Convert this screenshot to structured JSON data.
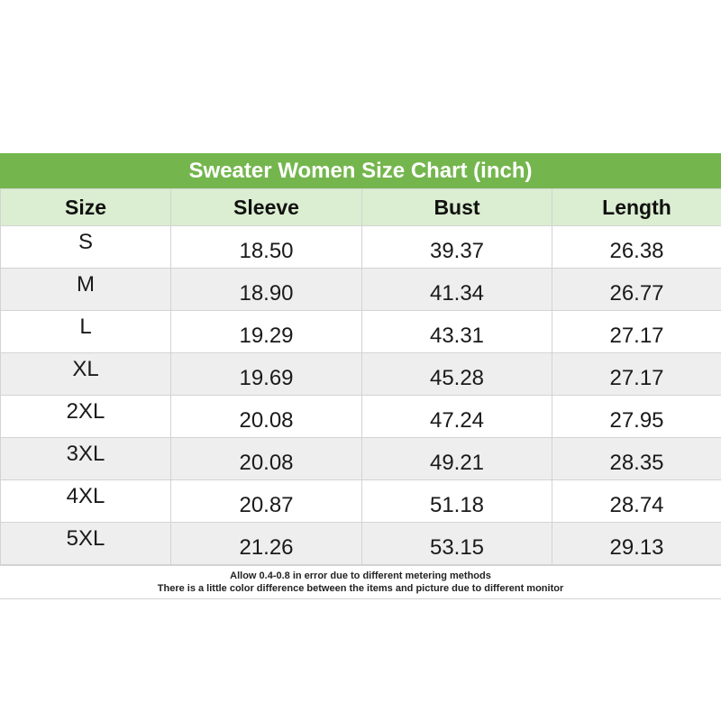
{
  "title": "Sweater Women Size Chart (inch)",
  "columns": [
    "Size",
    "Sleeve",
    "Bust",
    "Length"
  ],
  "rows": [
    {
      "size": "S",
      "sleeve": "18.50",
      "bust": "39.37",
      "length": "26.38"
    },
    {
      "size": "M",
      "sleeve": "18.90",
      "bust": "41.34",
      "length": "26.77"
    },
    {
      "size": "L",
      "sleeve": "19.29",
      "bust": "43.31",
      "length": "27.17"
    },
    {
      "size": "XL",
      "sleeve": "19.69",
      "bust": "45.28",
      "length": "27.17"
    },
    {
      "size": "2XL",
      "sleeve": "20.08",
      "bust": "47.24",
      "length": "27.95"
    },
    {
      "size": "3XL",
      "sleeve": "20.08",
      "bust": "49.21",
      "length": "28.35"
    },
    {
      "size": "4XL",
      "sleeve": "20.87",
      "bust": "51.18",
      "length": "28.74"
    },
    {
      "size": "5XL",
      "sleeve": "21.26",
      "bust": "53.15",
      "length": "29.13"
    }
  ],
  "notes": [
    "Allow 0.4-0.8 in error due to different metering methods",
    "There is a little color difference between the items and picture due to different monitor"
  ],
  "colors": {
    "title_bar": "#74b64d",
    "header_row": "#dbeed1",
    "stripe": "#eeeeee"
  }
}
